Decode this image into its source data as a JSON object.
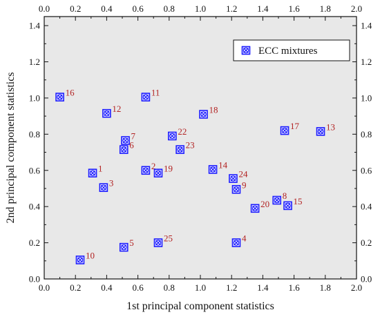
{
  "chart_data": {
    "type": "scatter",
    "xlabel": "1st principal component statistics",
    "ylabel": "2nd principal component statistics",
    "xlim": [
      0.0,
      2.0
    ],
    "ylim": [
      0.0,
      1.45
    ],
    "xticks": [
      "0.0",
      "0.2",
      "0.4",
      "0.6",
      "0.8",
      "1.0",
      "1.2",
      "1.4",
      "1.6",
      "1.8",
      "2.0"
    ],
    "yticks": [
      "0.0",
      "0.2",
      "0.4",
      "0.6",
      "0.8",
      "1.0",
      "1.2",
      "1.4"
    ],
    "grid": false,
    "legend_position": "top-right",
    "marker_color": "#1a1aff",
    "label_color": "#b22222",
    "plot_background": "#e8e8e8",
    "series": [
      {
        "name": "ECC mixtures",
        "points": [
          {
            "label": "1",
            "x": 0.31,
            "y": 0.585
          },
          {
            "label": "2",
            "x": 0.65,
            "y": 0.6
          },
          {
            "label": "3",
            "x": 0.38,
            "y": 0.505
          },
          {
            "label": "4",
            "x": 1.23,
            "y": 0.2
          },
          {
            "label": "5",
            "x": 0.51,
            "y": 0.175
          },
          {
            "label": "6",
            "x": 0.51,
            "y": 0.715
          },
          {
            "label": "7",
            "x": 0.52,
            "y": 0.765
          },
          {
            "label": "8",
            "x": 1.49,
            "y": 0.435
          },
          {
            "label": "9",
            "x": 1.23,
            "y": 0.495
          },
          {
            "label": "10",
            "x": 0.23,
            "y": 0.105
          },
          {
            "label": "11",
            "x": 0.65,
            "y": 1.005
          },
          {
            "label": "12",
            "x": 0.4,
            "y": 0.915
          },
          {
            "label": "13",
            "x": 1.77,
            "y": 0.815
          },
          {
            "label": "14",
            "x": 1.08,
            "y": 0.605
          },
          {
            "label": "15",
            "x": 1.56,
            "y": 0.405
          },
          {
            "label": "16",
            "x": 0.1,
            "y": 1.005
          },
          {
            "label": "17",
            "x": 1.54,
            "y": 0.82
          },
          {
            "label": "18",
            "x": 1.02,
            "y": 0.91
          },
          {
            "label": "19",
            "x": 0.73,
            "y": 0.585
          },
          {
            "label": "20",
            "x": 1.35,
            "y": 0.39
          },
          {
            "label": "22",
            "x": 0.82,
            "y": 0.79
          },
          {
            "label": "23",
            "x": 0.87,
            "y": 0.715
          },
          {
            "label": "24",
            "x": 1.21,
            "y": 0.555
          },
          {
            "label": "25",
            "x": 0.73,
            "y": 0.2
          }
        ]
      }
    ]
  }
}
